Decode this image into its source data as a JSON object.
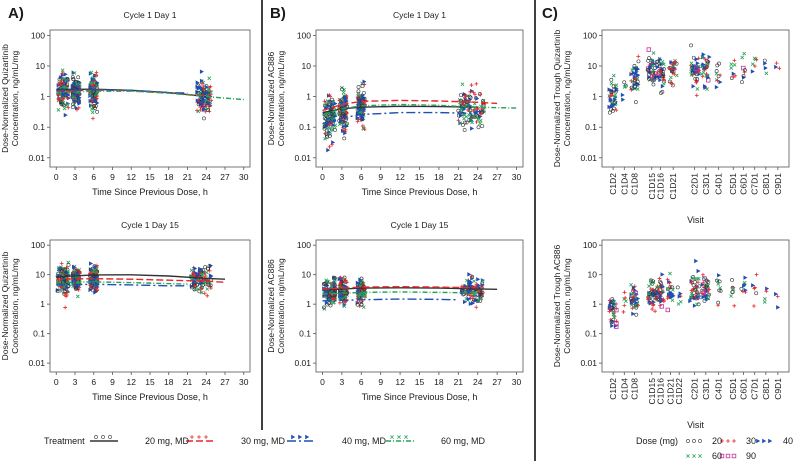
{
  "panel_labels": [
    "A)",
    "B)",
    "C)"
  ],
  "colors": {
    "d20": "#333333",
    "d30": "#e8262a",
    "d40": "#1f4fb5",
    "d60": "#27a258",
    "d90": "#c0349c"
  },
  "chart_data": [
    {
      "id": "A1",
      "type": "scatter",
      "title": "Cycle 1 Day 1",
      "ylabel": [
        "Dose-Normalized Quizartinib",
        "Concentration, ng/mL/mg"
      ],
      "xlabel": "Time Since Previous Dose, h",
      "yscale": "log",
      "ylim": [
        0.005,
        150
      ],
      "yticks": [
        "100",
        "10",
        "1",
        "0.1",
        "0.01"
      ],
      "ytick_values": [
        100,
        10,
        1,
        0.1,
        0.01
      ],
      "xlim": [
        -1,
        31
      ],
      "xticks": [
        0,
        3,
        6,
        9,
        12,
        15,
        18,
        21,
        24,
        27,
        30
      ],
      "clusters": [
        {
          "x": [
            0.3,
            2.0
          ],
          "c": 1.4,
          "s": 1.2
        },
        {
          "x": [
            2.6,
            3.8
          ],
          "c": 1.5,
          "s": 1.1
        },
        {
          "x": [
            5.4,
            6.6
          ],
          "c": 1.5,
          "s": 1.1
        },
        {
          "x": [
            22.5,
            24.8
          ],
          "c": 0.9,
          "s": 1.1
        }
      ],
      "series": [
        {
          "name": "20 mg, MD",
          "x": [
            0,
            6,
            12,
            18,
            24
          ],
          "y": [
            1.7,
            1.75,
            1.6,
            1.35,
            1.0
          ]
        },
        {
          "name": "30 mg, MD",
          "x": [
            0,
            6,
            12,
            18,
            24
          ],
          "y": [
            1.5,
            1.65,
            1.55,
            1.3,
            1.05
          ]
        },
        {
          "name": "40 mg, MD",
          "x": [
            0,
            6,
            12,
            18,
            21
          ],
          "y": [
            1.6,
            1.7,
            1.6,
            1.35,
            1.3
          ]
        },
        {
          "name": "60 mg, MD",
          "x": [
            0,
            6,
            12,
            18,
            24,
            30
          ],
          "y": [
            1.35,
            1.5,
            1.5,
            1.3,
            1.0,
            0.8
          ]
        }
      ]
    },
    {
      "id": "A2",
      "type": "scatter",
      "title": "Cycle 1 Day 15",
      "ylabel": [
        "Dose-Normalized Quizartinib",
        "Concentration, ng/mL/mg"
      ],
      "xlabel": "Time Since Previous Dose, h",
      "yscale": "log",
      "ylim": [
        0.005,
        150
      ],
      "yticks": [
        "100",
        "10",
        "1",
        "0.1",
        "0.01"
      ],
      "ytick_values": [
        100,
        10,
        1,
        0.1,
        0.01
      ],
      "xlim": [
        -1,
        31
      ],
      "xticks": [
        0,
        3,
        6,
        9,
        12,
        15,
        18,
        21,
        24,
        27,
        30
      ],
      "clusters": [
        {
          "x": [
            0.2,
            2.0
          ],
          "c": 7,
          "s": 1.0
        },
        {
          "x": [
            2.6,
            3.8
          ],
          "c": 7.5,
          "s": 0.9
        },
        {
          "x": [
            5.4,
            6.6
          ],
          "c": 7.5,
          "s": 0.9
        },
        {
          "x": [
            21.5,
            24.8
          ],
          "c": 7,
          "s": 0.9
        }
      ],
      "series": [
        {
          "name": "20 mg, MD",
          "x": [
            0,
            6,
            12,
            18,
            24,
            27
          ],
          "y": [
            8.5,
            9.8,
            9.9,
            9.0,
            7.5,
            7.0
          ]
        },
        {
          "name": "30 mg, MD",
          "x": [
            0,
            6,
            12,
            18,
            24,
            27
          ],
          "y": [
            7.0,
            7.3,
            7.0,
            6.5,
            6.0,
            5.5
          ]
        },
        {
          "name": "40 mg, MD",
          "x": [
            0,
            6,
            12,
            18,
            21
          ],
          "y": [
            4.5,
            4.7,
            4.5,
            4.2,
            4.2
          ]
        },
        {
          "name": "60 mg, MD",
          "x": [
            0,
            6,
            12,
            18,
            21
          ],
          "y": [
            5.5,
            5.7,
            5.4,
            5.0,
            4.8
          ]
        }
      ]
    },
    {
      "id": "B1",
      "type": "scatter",
      "title": "Cycle 1 Day 1",
      "ylabel": [
        "Dose-Normalized AC886",
        "Concentration, ng/mL/mg"
      ],
      "xlabel": "Time Since Previous Dose, h",
      "yscale": "log",
      "ylim": [
        0.005,
        150
      ],
      "yticks": [
        "100",
        "10",
        "1",
        "0.1",
        "0.01"
      ],
      "ytick_values": [
        100,
        10,
        1,
        0.1,
        0.01
      ],
      "xlim": [
        -1,
        31
      ],
      "xticks": [
        0,
        3,
        6,
        9,
        12,
        15,
        18,
        21,
        24,
        27,
        30
      ],
      "clusters": [
        {
          "x": [
            0.3,
            2.0
          ],
          "c": 0.2,
          "s": 1.4
        },
        {
          "x": [
            2.6,
            3.8
          ],
          "c": 0.35,
          "s": 1.3
        },
        {
          "x": [
            5.4,
            6.6
          ],
          "c": 0.45,
          "s": 1.2
        },
        {
          "x": [
            21.0,
            25.0
          ],
          "c": 0.4,
          "s": 1.3
        }
      ],
      "series": [
        {
          "name": "20 mg, MD",
          "x": [
            0,
            3,
            6,
            12,
            18,
            24
          ],
          "y": [
            0.3,
            0.4,
            0.45,
            0.48,
            0.47,
            0.45
          ]
        },
        {
          "name": "30 mg, MD",
          "x": [
            0,
            3,
            6,
            12,
            18,
            24,
            27
          ],
          "y": [
            0.35,
            0.55,
            0.7,
            0.75,
            0.72,
            0.65,
            0.6
          ]
        },
        {
          "name": "40 mg, MD",
          "x": [
            0,
            3,
            6,
            12,
            18,
            24
          ],
          "y": [
            0.13,
            0.2,
            0.26,
            0.3,
            0.3,
            0.28
          ]
        },
        {
          "name": "60 mg, MD",
          "x": [
            0,
            3,
            6,
            12,
            18,
            24,
            30
          ],
          "y": [
            0.25,
            0.4,
            0.5,
            0.55,
            0.52,
            0.45,
            0.42
          ]
        }
      ]
    },
    {
      "id": "B2",
      "type": "scatter",
      "title": "Cycle 1 Day 15",
      "ylabel": [
        "Dose-Normalized AC886",
        "Concentration, ng/mL/mg"
      ],
      "xlabel": "Time Since Previous Dose, h",
      "yscale": "log",
      "ylim": [
        0.005,
        150
      ],
      "yticks": [
        "100",
        "10",
        "1",
        "0.1",
        "0.01"
      ],
      "ytick_values": [
        100,
        10,
        1,
        0.1,
        0.01
      ],
      "xlim": [
        -1,
        31
      ],
      "xticks": [
        0,
        3,
        6,
        9,
        12,
        15,
        18,
        21,
        24,
        27,
        30
      ],
      "clusters": [
        {
          "x": [
            0.2,
            2.0
          ],
          "c": 2.5,
          "s": 1.0
        },
        {
          "x": [
            2.6,
            3.8
          ],
          "c": 2.8,
          "s": 0.9
        },
        {
          "x": [
            5.4,
            6.6
          ],
          "c": 2.8,
          "s": 0.9
        },
        {
          "x": [
            21.5,
            24.8
          ],
          "c": 3,
          "s": 0.9
        }
      ],
      "series": [
        {
          "name": "20 mg, MD",
          "x": [
            0,
            6,
            12,
            18,
            24,
            27
          ],
          "y": [
            3.0,
            3.5,
            3.6,
            3.5,
            3.3,
            3.2
          ]
        },
        {
          "name": "30 mg, MD",
          "x": [
            0,
            6,
            12,
            18,
            24
          ],
          "y": [
            3.2,
            3.8,
            3.9,
            3.8,
            3.6
          ]
        },
        {
          "name": "40 mg, MD",
          "x": [
            0,
            6,
            12,
            18,
            21
          ],
          "y": [
            1.3,
            1.4,
            1.5,
            1.45,
            1.4
          ]
        },
        {
          "name": "60 mg, MD",
          "x": [
            0,
            6,
            12,
            18,
            24
          ],
          "y": [
            2.2,
            2.5,
            2.6,
            2.5,
            2.4
          ]
        }
      ]
    },
    {
      "id": "C1",
      "type": "scatter",
      "title": "",
      "ylabel": [
        "Dose-Normalized Trough Quizartinib",
        "Concentration, ng/mL/mg"
      ],
      "xlabel": "Visit",
      "yscale": "log",
      "ylim": [
        0.005,
        150
      ],
      "yticks": [
        "100",
        "10",
        "1",
        "0.1",
        "0.01"
      ],
      "ytick_values": [
        100,
        10,
        1,
        0.1,
        0.01
      ],
      "categories": [
        "C1D2",
        "C1D4",
        "C1D8",
        "C1D15",
        "C1D16",
        "C1D21",
        "C2D1",
        "C3D1",
        "C4D1",
        "C5D1",
        "C6D1",
        "C7D1",
        "C8D1",
        "C9D1"
      ],
      "category_centers": [
        1.0,
        2.3,
        3.5,
        5.5,
        6.5,
        8.0,
        10.5,
        11.8,
        13.3,
        15.0,
        16.2,
        17.5,
        18.8,
        20.2
      ],
      "category_spread": [
        0.9,
        0.4,
        0.9,
        0.9,
        0.9,
        0.9,
        1.1,
        0.9,
        0.5,
        0.5,
        0.5,
        0.5,
        0.5,
        0.5
      ],
      "category_levels": [
        1.0,
        2.0,
        4.0,
        6.0,
        6.5,
        6.5,
        6.5,
        7.0,
        6.5,
        7.0,
        8.0,
        8.5,
        9.5,
        10.0
      ],
      "category_count": [
        40,
        6,
        40,
        45,
        45,
        30,
        45,
        35,
        10,
        8,
        8,
        6,
        4,
        3
      ],
      "xlim": [
        -0.3,
        21.5
      ]
    },
    {
      "id": "C2",
      "type": "scatter",
      "title": "",
      "ylabel": [
        "Dose-Normalized Trough AC886",
        "Concentration, ng/mL/mg"
      ],
      "xlabel": "Visit",
      "yscale": "log",
      "ylim": [
        0.005,
        150
      ],
      "yticks": [
        "100",
        "10",
        "1",
        "0.1",
        "0.01"
      ],
      "ytick_values": [
        100,
        10,
        1,
        0.1,
        0.01
      ],
      "categories": [
        "C1D2",
        "C1D4",
        "C1D8",
        "C1D15",
        "C1D16",
        "C1D21",
        "C1D22",
        "C2D1",
        "C3D1",
        "C4D1",
        "C5D1",
        "C6D1",
        "C7D1",
        "C8D1",
        "C9D1"
      ],
      "category_centers": [
        1.0,
        2.3,
        3.5,
        5.5,
        6.5,
        7.7,
        8.7,
        10.5,
        11.8,
        13.3,
        15.0,
        16.2,
        17.5,
        18.8,
        20.2
      ],
      "category_spread": [
        0.9,
        0.4,
        0.9,
        0.9,
        0.9,
        0.7,
        0.4,
        1.1,
        0.9,
        0.5,
        0.5,
        0.5,
        0.5,
        0.5,
        0.5
      ],
      "category_levels": [
        0.6,
        1.0,
        1.5,
        2.2,
        2.5,
        2.5,
        2.2,
        3.0,
        3.0,
        3.0,
        2.5,
        2.5,
        2.5,
        2.2,
        2.0
      ],
      "category_count": [
        40,
        6,
        40,
        45,
        45,
        25,
        6,
        45,
        35,
        10,
        8,
        8,
        6,
        4,
        3
      ],
      "xlim": [
        -0.3,
        21.5
      ]
    }
  ],
  "legend_ab": {
    "title": "Treatment",
    "items": [
      "20 mg, MD",
      "30 mg, MD",
      "40 mg, MD",
      "60 mg, MD"
    ]
  },
  "legend_c": {
    "title": "Dose (mg)",
    "items": [
      "20",
      "30",
      "40",
      "60",
      "90"
    ]
  }
}
